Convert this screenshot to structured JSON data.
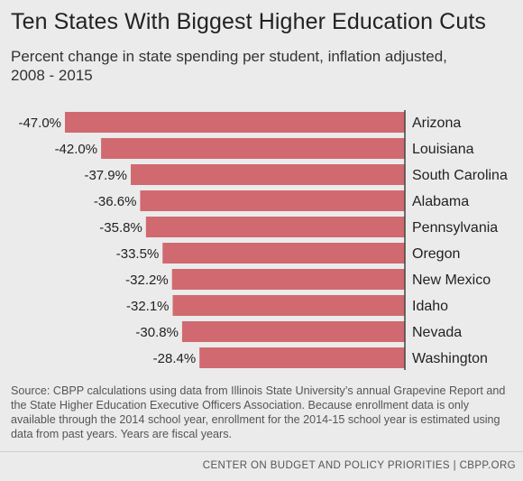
{
  "title": "Ten States With Biggest Higher Education Cuts",
  "subtitle": "Percent change in state spending per student, inflation adjusted, 2008 - 2015",
  "source": "Source: CBPP calculations using data from Illinois State University’s annual Grapevine Report and the State Higher Education Executive Officers Association. Because enrollment data is only available through the 2014 school year, enrollment for the 2014-15 school year is estimated using data from past years. Years are fiscal years.",
  "footer": "CENTER ON BUDGET AND POLICY PRIORITIES | CBPP.ORG",
  "colors": {
    "bar": "#d06a70",
    "background": "#ebebeb",
    "axis": "#444444"
  },
  "chart_data": {
    "type": "bar",
    "orientation": "horizontal",
    "categories": [
      "Arizona",
      "Louisiana",
      "South Carolina",
      "Alabama",
      "Pennsylvania",
      "Oregon",
      "New Mexico",
      "Idaho",
      "Nevada",
      "Washington"
    ],
    "values": [
      -47.0,
      -42.0,
      -37.9,
      -36.6,
      -35.8,
      -33.5,
      -32.2,
      -32.1,
      -30.8,
      -28.4
    ],
    "value_labels": [
      "-47.0%",
      "-42.0%",
      "-37.9%",
      "-36.6%",
      "-35.8%",
      "-33.5%",
      "-32.2%",
      "-32.1%",
      "-30.8%",
      "-28.4%"
    ],
    "xlim": [
      -47.0,
      0
    ],
    "grid": false,
    "legend": "none"
  }
}
